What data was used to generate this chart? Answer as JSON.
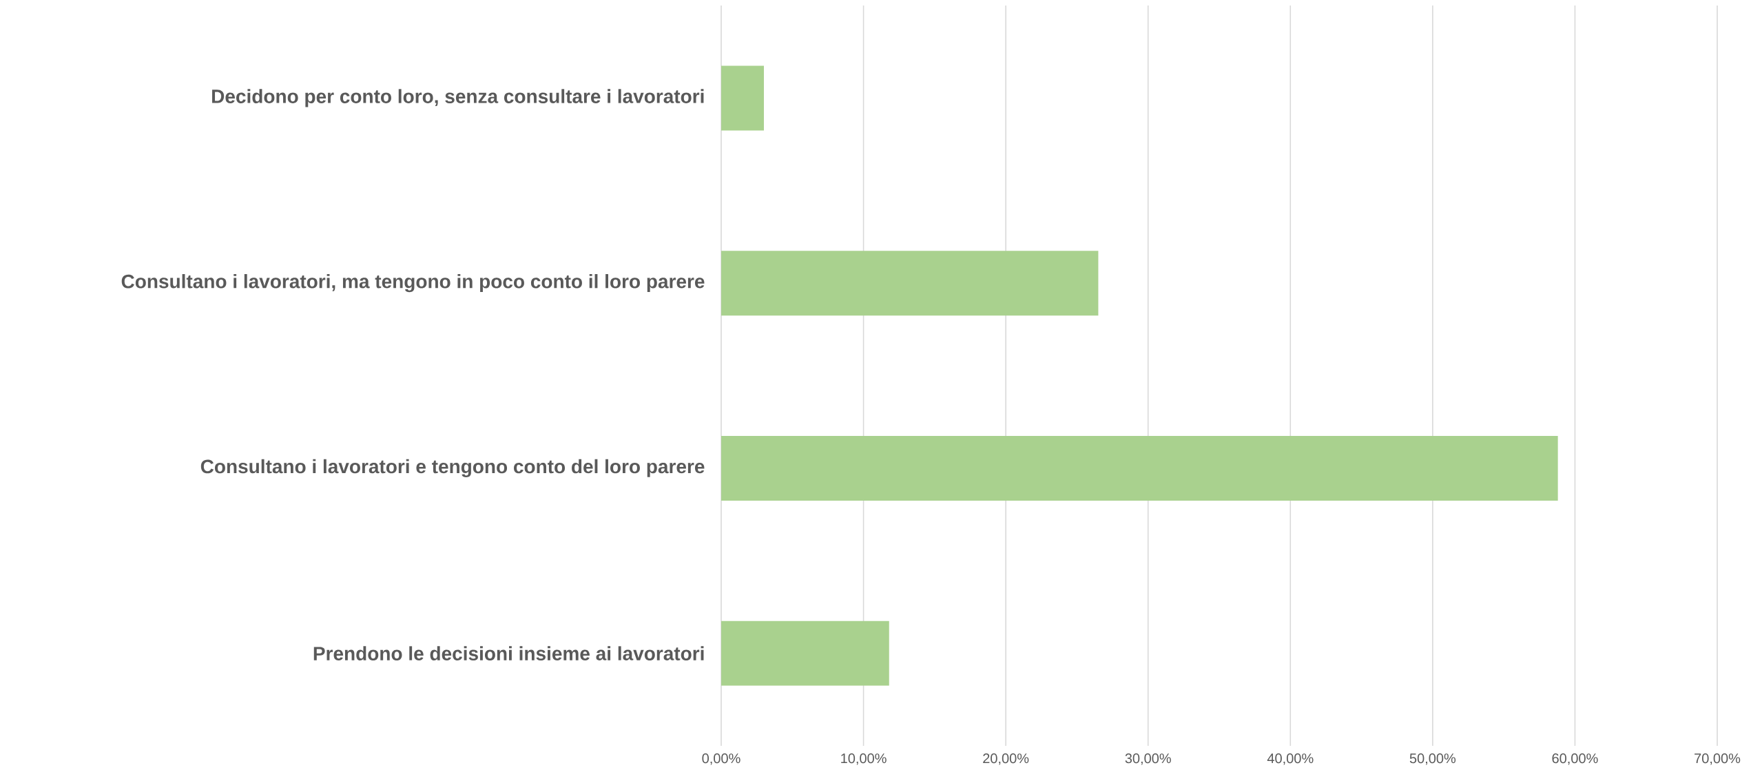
{
  "chart_data": {
    "type": "bar",
    "orientation": "horizontal",
    "categories": [
      "Decidono per conto loro, senza consultare i lavoratori",
      "Consultano i lavoratori, ma tengono in poco conto il loro parere",
      "Consultano i lavoratori e tengono conto del loro parere",
      "Prendono le decisioni insieme ai lavoratori"
    ],
    "values": [
      3.0,
      26.5,
      58.8,
      11.8
    ],
    "color": "#a9d18e",
    "xlim": [
      0,
      70
    ],
    "xticks": [
      {
        "value": 0,
        "label": "0,00%"
      },
      {
        "value": 10,
        "label": "10,00%"
      },
      {
        "value": 20,
        "label": "20,00%"
      },
      {
        "value": 30,
        "label": "30,00%"
      },
      {
        "value": 40,
        "label": "40,00%"
      },
      {
        "value": 50,
        "label": "50,00%"
      },
      {
        "value": 60,
        "label": "60,00%"
      },
      {
        "value": 70,
        "label": "70,00%"
      }
    ],
    "grid": "x"
  }
}
